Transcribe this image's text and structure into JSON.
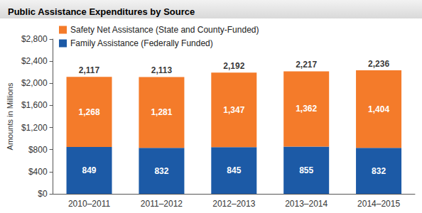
{
  "chart_data": {
    "type": "bar",
    "title": "Public Assistance Expenditures by Source",
    "y_label": "Amounts in Millions",
    "categories": [
      "2010–2011",
      "2011–2012",
      "2012–2013",
      "2013–2014",
      "2014–2015"
    ],
    "series": [
      {
        "name": "Family Assistance (Federally Funded)",
        "color": "#1c5aa6",
        "values": [
          849,
          832,
          845,
          855,
          832
        ]
      },
      {
        "name": "Safety Net Assistance (State and County-Funded)",
        "color": "#f47b2a",
        "values": [
          1268,
          1281,
          1347,
          1362,
          1404
        ],
        "value_labels": [
          "1,268",
          "1,281",
          "1,347",
          "1,362",
          "1,404"
        ]
      }
    ],
    "totals": [
      2117,
      2113,
      2192,
      2217,
      2236
    ],
    "total_labels": [
      "2,117",
      "2,113",
      "2,192",
      "2,217",
      "2,236"
    ],
    "ylim": [
      0,
      2800
    ],
    "yticks": [
      {
        "value": 0,
        "label": "$0"
      },
      {
        "value": 400,
        "label": "$400"
      },
      {
        "value": 800,
        "label": "$800"
      },
      {
        "value": 1200,
        "label": "$1,200"
      },
      {
        "value": 1600,
        "label": "$1,600"
      },
      {
        "value": 2000,
        "label": "$2,000"
      },
      {
        "value": 2400,
        "label": "$2,400"
      },
      {
        "value": 2800,
        "label": "$2,800"
      }
    ],
    "stacked": true,
    "data_labels": true,
    "grid": false,
    "legend": "top-left"
  }
}
